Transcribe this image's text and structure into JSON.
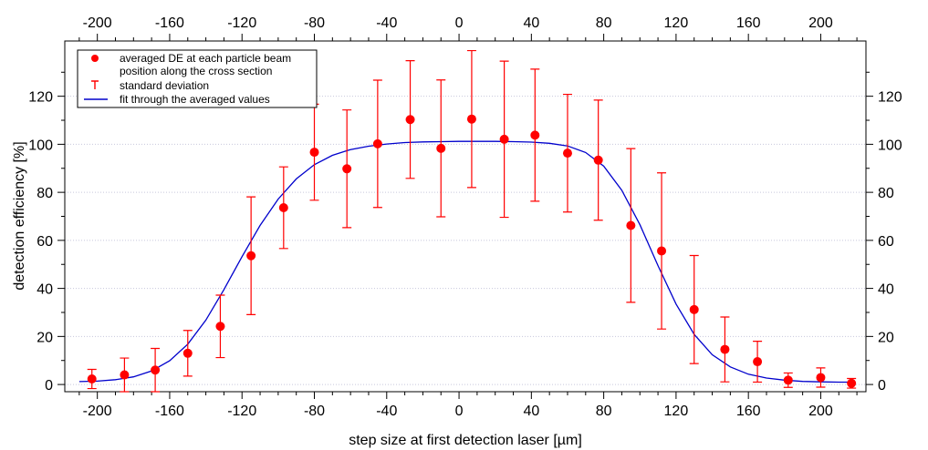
{
  "chart_data": {
    "type": "scatter",
    "xlabel": "step size at first detection laser [µm]",
    "ylabel": "detection efficiency [%]",
    "xlim": [
      -218,
      225
    ],
    "ylim": [
      -3,
      143
    ],
    "x_ticks": [
      -200,
      -160,
      -120,
      -80,
      -40,
      0,
      40,
      80,
      120,
      160,
      200
    ],
    "y_ticks": [
      0,
      20,
      40,
      60,
      80,
      100,
      120
    ],
    "grid": "horizontal dotted",
    "legend_position": "top-left",
    "colors": {
      "points": "#ff0000",
      "fit": "#0000cc",
      "grid": "#c8c8dc"
    },
    "series": [
      {
        "name": "averaged DE at each particle beam position along the cross section",
        "kind": "points",
        "x": [
          -203,
          -185,
          -168,
          -150,
          -132,
          -115,
          -97,
          -80,
          -62,
          -45,
          -27,
          -10,
          7,
          25,
          42,
          60,
          77,
          95,
          112,
          130,
          147,
          165,
          182,
          200,
          217
        ],
        "y": [
          2.3,
          4.0,
          6.0,
          13.0,
          24.2,
          53.6,
          73.6,
          96.7,
          89.8,
          100.2,
          110.3,
          98.3,
          110.5,
          102.1,
          103.8,
          96.3,
          93.4,
          66.2,
          55.6,
          31.2,
          14.6,
          9.5,
          1.8,
          2.9,
          0.5
        ]
      },
      {
        "name": "standard deviation",
        "kind": "error_bars",
        "yerr": [
          4.0,
          7.0,
          9.0,
          9.5,
          13.0,
          24.5,
          17.0,
          20.0,
          24.5,
          26.5,
          24.5,
          28.5,
          28.5,
          32.5,
          27.5,
          24.5,
          25.0,
          32.0,
          32.5,
          22.5,
          13.5,
          8.5,
          3.0,
          4.0,
          2.0
        ]
      },
      {
        "name": "fit through the averaged values",
        "kind": "fit_line",
        "x": [
          -210,
          -200,
          -190,
          -180,
          -170,
          -160,
          -150,
          -140,
          -130,
          -120,
          -110,
          -100,
          -90,
          -80,
          -70,
          -60,
          -50,
          -40,
          -30,
          -20,
          -10,
          0,
          10,
          20,
          30,
          40,
          50,
          60,
          70,
          80,
          90,
          100,
          110,
          120,
          130,
          140,
          150,
          160,
          170,
          180,
          190,
          200,
          210,
          218
        ],
        "y": [
          1.2,
          1.4,
          2.0,
          3.2,
          5.6,
          9.9,
          16.8,
          26.8,
          39.5,
          53.2,
          66.2,
          77.2,
          85.6,
          91.5,
          95.4,
          97.8,
          99.2,
          100.1,
          100.7,
          101.0,
          101.1,
          101.2,
          101.2,
          101.2,
          101.1,
          100.9,
          100.4,
          99.3,
          96.6,
          90.9,
          80.9,
          66.5,
          49.5,
          33.5,
          20.9,
          12.4,
          7.3,
          4.3,
          2.7,
          1.8,
          1.3,
          1.1,
          1.0,
          1.0
        ]
      }
    ]
  }
}
